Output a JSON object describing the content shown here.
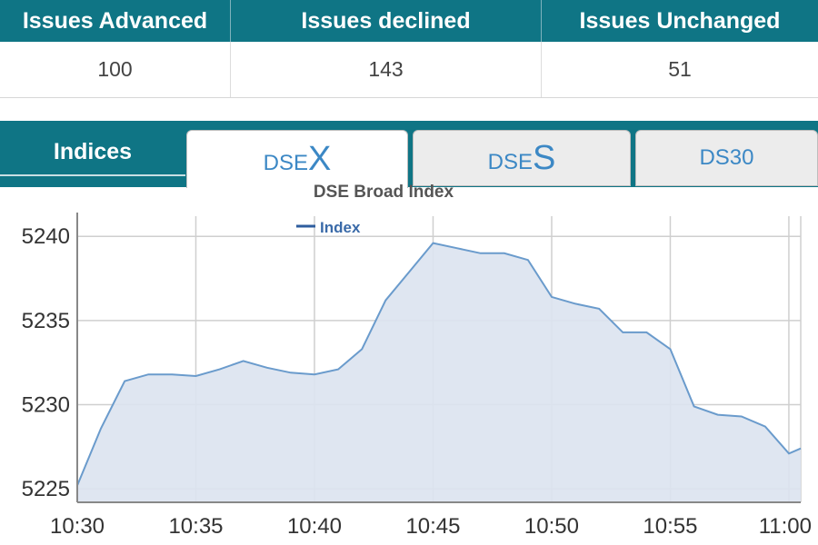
{
  "stats": {
    "headers": [
      "Issues Advanced",
      "Issues declined",
      "Issues Unchanged"
    ],
    "values": [
      "100",
      "143",
      "51"
    ]
  },
  "tabs": {
    "section_label": "Indices",
    "items": [
      {
        "prefix": "DSE",
        "suffix": "X",
        "active": true
      },
      {
        "prefix": "DSE",
        "suffix": "S",
        "active": false
      },
      {
        "prefix": "DS30",
        "suffix": "",
        "active": false
      }
    ]
  },
  "colors": {
    "header_bg": "#0f7585",
    "line": "#6a9bcc",
    "area": "#dbe3ef",
    "tab_text": "#3c88c5"
  },
  "chart_data": {
    "type": "area",
    "title": "DSE Broad Index",
    "xlabel": "",
    "ylabel": "",
    "legend": "top-center",
    "grid": true,
    "series": [
      {
        "name": "Index",
        "x": [
          "10:30",
          "10:31",
          "10:32",
          "10:33",
          "10:34",
          "10:35",
          "10:36",
          "10:37",
          "10:38",
          "10:39",
          "10:40",
          "10:41",
          "10:42",
          "10:43",
          "10:44",
          "10:45",
          "10:46",
          "10:47",
          "10:48",
          "10:49",
          "10:50",
          "10:51",
          "10:52",
          "10:53",
          "10:54",
          "10:55",
          "10:56",
          "10:57",
          "10:58",
          "10:59",
          "11:00",
          "11:00:30"
        ],
        "values": [
          5225.2,
          5228.6,
          5231.4,
          5231.8,
          5231.8,
          5231.7,
          5232.1,
          5232.6,
          5232.2,
          5231.9,
          5231.8,
          5232.1,
          5233.3,
          5236.2,
          5237.9,
          5239.6,
          5239.3,
          5239.0,
          5239.0,
          5238.6,
          5236.4,
          5236.0,
          5235.7,
          5234.3,
          5234.3,
          5233.3,
          5229.9,
          5229.4,
          5229.3,
          5228.7,
          5227.1,
          5227.4
        ]
      }
    ],
    "xticks": [
      "10:30",
      "10:35",
      "10:40",
      "10:45",
      "10:50",
      "10:55",
      "11:00"
    ],
    "yticks": [
      5225,
      5230,
      5235,
      5240
    ],
    "ylim": [
      5224.2,
      5241.2
    ]
  }
}
